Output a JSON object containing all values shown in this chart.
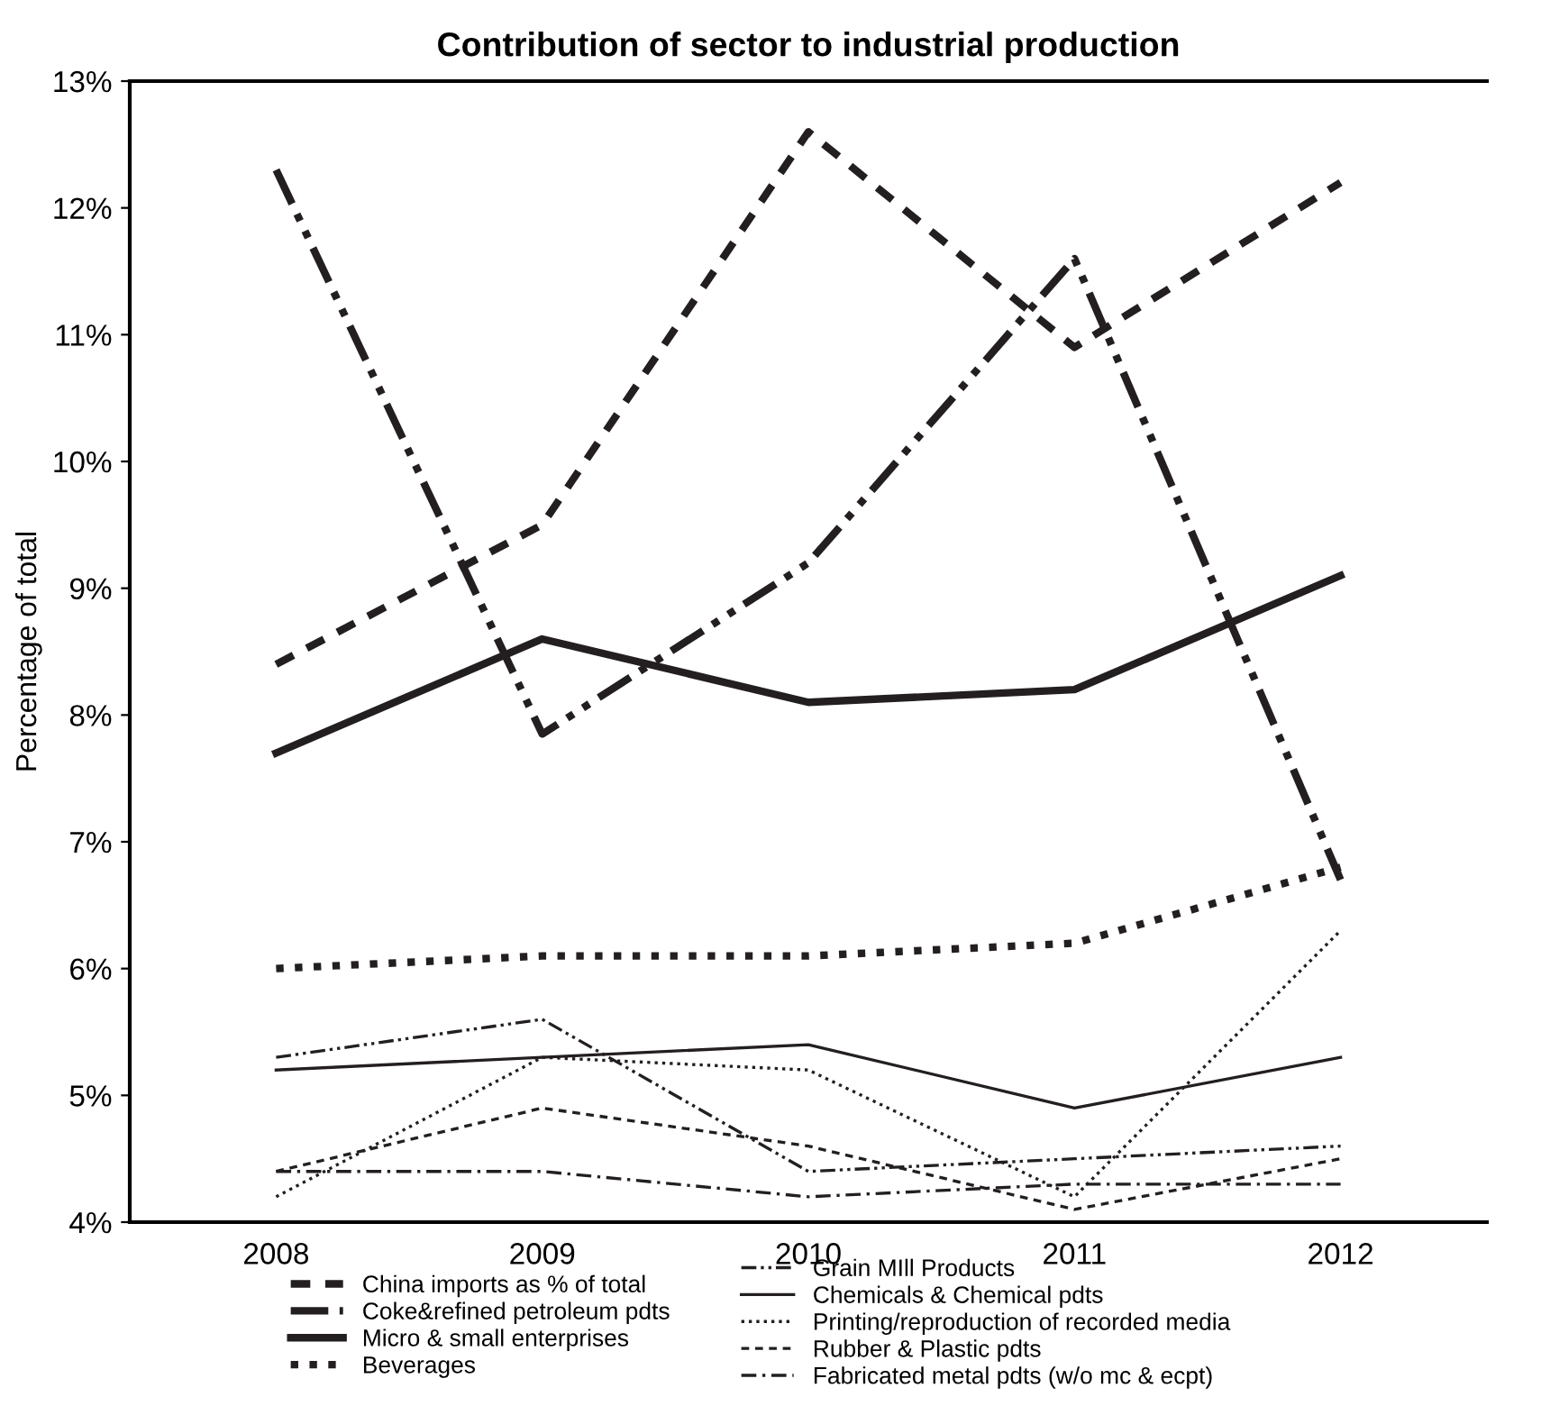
{
  "chart_data": {
    "type": "line",
    "title": "Contribution of sector to industrial production",
    "ylabel": "Percentage of total",
    "categories": [
      "2008",
      "2009",
      "2010",
      "2011",
      "2012"
    ],
    "series": [
      {
        "name": "China imports as % of total",
        "color": "#231f20",
        "line_style": "dashed",
        "values": [
          8.4,
          9.5,
          12.6,
          10.9,
          12.2
        ]
      },
      {
        "name": "Coke&refined petroleum pdts",
        "color": "#231f20",
        "line_style": "dashdotdot",
        "values": [
          12.3,
          7.85,
          9.2,
          11.6,
          6.7
        ]
      },
      {
        "name": "Micro & small enterprises",
        "color": "#231f20",
        "line_style": "solid",
        "values": [
          7.7,
          8.6,
          8.1,
          8.2,
          9.1
        ]
      },
      {
        "name": "Beverages",
        "color": "#231f20",
        "line_style": "dotted",
        "values": [
          6.0,
          6.1,
          6.1,
          6.2,
          6.8
        ]
      },
      {
        "name": "Grain MIll Products",
        "color": "#231f20",
        "line_style": "dashdotdot",
        "values": [
          5.3,
          5.6,
          4.4,
          4.5,
          4.6
        ]
      },
      {
        "name": "Chemicals & Chemical pdts",
        "color": "#231f20",
        "line_style": "solid",
        "values": [
          5.2,
          5.3,
          5.4,
          4.9,
          5.3
        ]
      },
      {
        "name": "Printing/reproduction of recorded media",
        "color": "#231f20",
        "line_style": "dotted",
        "values": [
          4.2,
          5.3,
          5.2,
          4.2,
          6.3
        ]
      },
      {
        "name": "Rubber & Plastic pdts",
        "color": "#231f20",
        "line_style": "dashed",
        "values": [
          4.4,
          4.9,
          4.6,
          4.1,
          4.5
        ]
      },
      {
        "name": "Fabricated metal pdts (w/o mc & ecpt)",
        "color": "#231f20",
        "line_style": "dashdot",
        "values": [
          4.4,
          4.4,
          4.2,
          4.3,
          4.3
        ]
      }
    ],
    "ylim": [
      4,
      13
    ],
    "yticks": [
      {
        "value": 4,
        "label": "4%"
      },
      {
        "value": 5,
        "label": "5%"
      },
      {
        "value": 6,
        "label": "6%"
      },
      {
        "value": 7,
        "label": "7%"
      },
      {
        "value": 8,
        "label": "8%"
      },
      {
        "value": 9,
        "label": "9%"
      },
      {
        "value": 10,
        "label": "10%"
      },
      {
        "value": 11,
        "label": "11%"
      },
      {
        "value": 12,
        "label": "12%"
      },
      {
        "value": 13,
        "label": "13%"
      }
    ],
    "grid": false,
    "legend": "bottom",
    "marker": "none"
  }
}
